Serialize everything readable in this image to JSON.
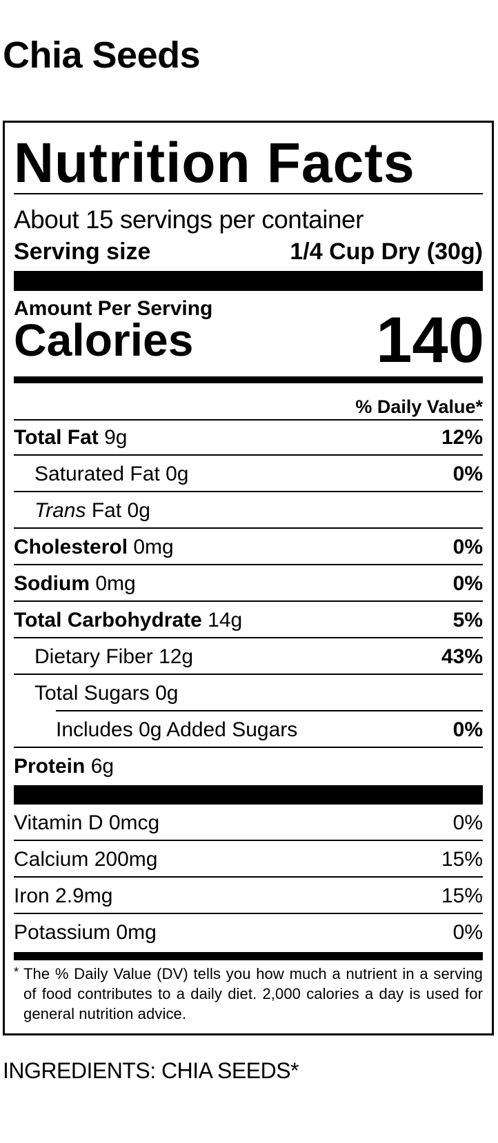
{
  "product_name": "Chia Seeds",
  "label": {
    "title": "Nutrition Facts",
    "servings_per_container": "About 15 servings per container",
    "serving_size_label": "Serving size",
    "serving_size_value": "1/4 Cup Dry (30g)",
    "amount_per_serving": "Amount Per Serving",
    "calories_label": "Calories",
    "calories_value": "140",
    "daily_value_header": "% Daily Value*",
    "nutrients": [
      {
        "name": "Total Fat",
        "amount": "9g",
        "dv": "12%",
        "bold": true
      },
      {
        "name": "Saturated Fat",
        "amount": "0g",
        "dv": "0%",
        "bold": false
      },
      {
        "name": "Trans",
        "name_suffix": "Fat",
        "amount": "0g",
        "dv": "",
        "bold": false
      },
      {
        "name": "Cholesterol",
        "amount": "0mg",
        "dv": "0%",
        "bold": true
      },
      {
        "name": "Sodium",
        "amount": "0mg",
        "dv": "0%",
        "bold": true
      },
      {
        "name": "Total Carbohydrate",
        "amount": "14g",
        "dv": "5%",
        "bold": true
      },
      {
        "name": "Dietary Fiber",
        "amount": "12g",
        "dv": "43%",
        "bold": false
      },
      {
        "name": "Total Sugars",
        "amount": "0g",
        "dv": "",
        "bold": false
      },
      {
        "name": "Includes 0g Added Sugars",
        "amount": "",
        "dv": "0%",
        "bold": false
      },
      {
        "name": "Protein",
        "amount": "6g",
        "dv": "",
        "bold": true
      }
    ],
    "vitamins": [
      {
        "name": "Vitamin D",
        "amount": "0mcg",
        "dv": "0%"
      },
      {
        "name": "Calcium",
        "amount": "200mg",
        "dv": "15%"
      },
      {
        "name": "Iron",
        "amount": "2.9mg",
        "dv": "15%"
      },
      {
        "name": "Potassium",
        "amount": "0mg",
        "dv": "0%"
      }
    ],
    "footnote_mark": "*",
    "footnote": "The % Daily Value (DV) tells you how much a nutrient in a serving of food contributes to a daily diet. 2,000 calories a day is used for general nutrition advice."
  },
  "ingredients": "INGREDIENTS: CHIA SEEDS*"
}
